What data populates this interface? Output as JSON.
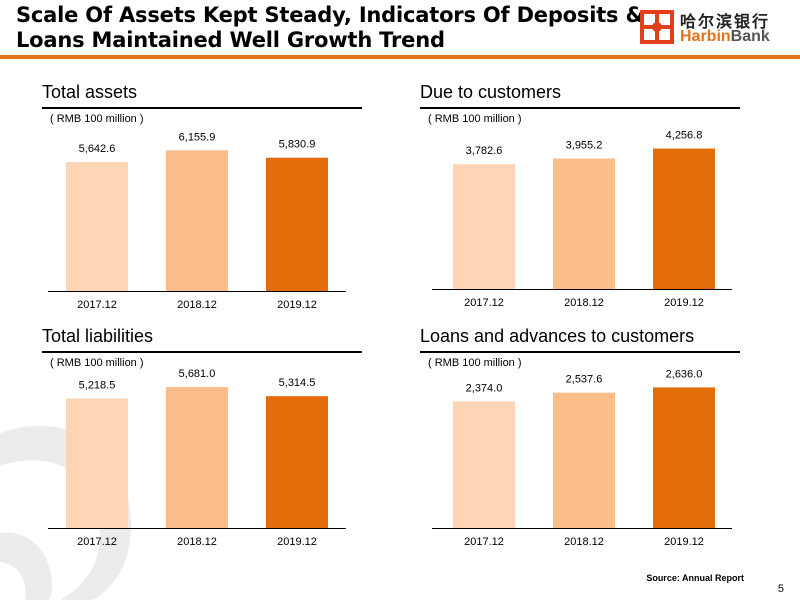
{
  "slide": {
    "title_line1": "Scale Of Assets Kept Steady, Indicators Of Deposits &",
    "title_line2": "Loans Maintained Well Growth Trend",
    "logo_cn": "哈尔滨银行",
    "logo_en_a": "Harbin",
    "logo_en_b": "Bank",
    "source": "Source: Annual Report",
    "page_number": "5"
  },
  "colors": {
    "accent": "#e2731a",
    "bar_light": "#fdd5b5",
    "bar_mid": "#fbbd8a",
    "bar_dark": "#e46c0a"
  },
  "chart_data": [
    {
      "type": "bar",
      "title": "Total assets",
      "unit": "( RMB 100 million )",
      "categories": [
        "2017.12",
        "2018.12",
        "2019.12"
      ],
      "values": [
        5642.6,
        6155.9,
        5830.9
      ],
      "labels": [
        "5,642.6",
        "6,155.9",
        "5,830.9"
      ],
      "ylim": [
        0,
        7000
      ]
    },
    {
      "type": "bar",
      "title": "Due to customers",
      "unit": "( RMB 100 million )",
      "categories": [
        "2017.12",
        "2018.12",
        "2019.12"
      ],
      "values": [
        3782.6,
        3955.2,
        4256.8
      ],
      "labels": [
        "3,782.6",
        "3,955.2",
        "4,256.8"
      ],
      "ylim": [
        0,
        4850
      ]
    },
    {
      "type": "bar",
      "title": "Total liabilities",
      "unit": "( RMB 100 million )",
      "categories": [
        "2017.12",
        "2018.12",
        "2019.12"
      ],
      "values": [
        5218.5,
        5681.0,
        5314.5
      ],
      "labels": [
        "5,218.5",
        "5,681.0",
        "5,314.5"
      ],
      "ylim": [
        0,
        6450
      ]
    },
    {
      "type": "bar",
      "title": "Loans and advances to customers",
      "unit": "( RMB 100 million )",
      "categories": [
        "2017.12",
        "2018.12",
        "2019.12"
      ],
      "values": [
        2374.0,
        2537.6,
        2636.0
      ],
      "labels": [
        "2,374.0",
        "2,537.6",
        "2,636.0"
      ],
      "ylim": [
        0,
        3000
      ]
    }
  ]
}
